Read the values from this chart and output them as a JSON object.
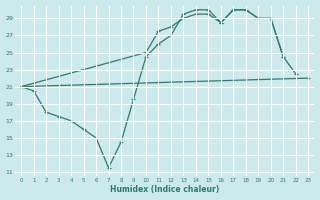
{
  "background_color": "#cce9eb",
  "grid_color": "#ffffff",
  "line_color": "#2e7b6e",
  "l1x": [
    0,
    1,
    2,
    3,
    4,
    5,
    6,
    7,
    8,
    9,
    10,
    11,
    12,
    13,
    14,
    15,
    16,
    17,
    18,
    19,
    20,
    21,
    22
  ],
  "l1y": [
    21,
    20.5,
    18,
    17.5,
    17,
    16,
    15,
    11.5,
    14.5,
    19.5,
    24.5,
    26,
    27,
    29.5,
    30,
    30,
    28.5,
    30,
    30,
    29,
    29,
    24.5,
    22.5
  ],
  "l2x": [
    0,
    10,
    11,
    12,
    13,
    14,
    15,
    16,
    17,
    18,
    19,
    20,
    21
  ],
  "l2y": [
    21,
    25,
    27.5,
    28,
    29,
    29.5,
    29.5,
    28.5,
    30,
    30,
    29,
    29,
    24.5
  ],
  "l3x": [
    0,
    23
  ],
  "l3y": [
    21,
    22
  ],
  "ylim": [
    10.5,
    30.5
  ],
  "xlim": [
    -0.5,
    23.5
  ],
  "yticks": [
    11,
    13,
    15,
    17,
    19,
    21,
    23,
    25,
    27,
    29
  ],
  "xticks": [
    0,
    1,
    2,
    3,
    4,
    5,
    6,
    7,
    8,
    9,
    10,
    11,
    12,
    13,
    14,
    15,
    16,
    17,
    18,
    19,
    20,
    21,
    22,
    23
  ],
  "xlabel": "Humidex (Indice chaleur)"
}
